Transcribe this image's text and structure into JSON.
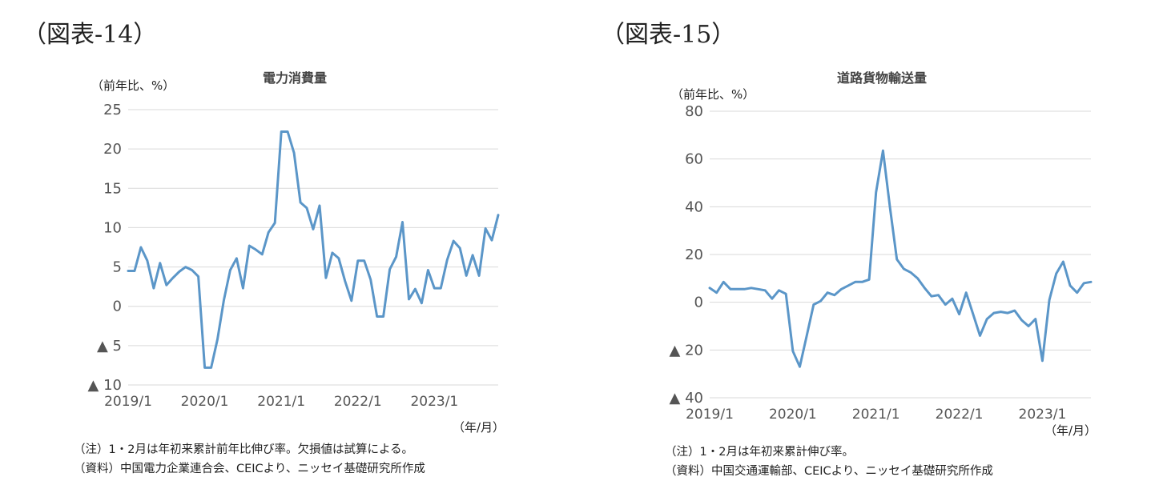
{
  "figures": [
    {
      "label": "（図表-14）",
      "title": "電力消費量",
      "y_unit": "（前年比、%）",
      "x_unit": "（年/月）",
      "notes": [
        "（注）1・2月は年初来累計前年比伸び率。欠損値は試算による。",
        "（資料）中国電力企業連合会、CEICより、ニッセイ基礎研究所作成"
      ]
    },
    {
      "label": "（図表-15）",
      "title": "道路貨物輸送量",
      "y_unit": "（前年比、%）",
      "x_unit": "（年/月）",
      "notes": [
        "（注）1・2月は年初来累計伸び率。",
        "（資料）中国交通運輸部、CEICより、ニッセイ基礎研究所作成"
      ]
    }
  ],
  "chart_data": [
    {
      "type": "line",
      "title": "電力消費量",
      "ylabel": "（前年比、%）",
      "xlabel": "（年/月）",
      "ylim": [
        -10,
        25
      ],
      "yticks": [
        25,
        20,
        15,
        10,
        5,
        0,
        -5,
        -10
      ],
      "ytick_labels": [
        "25",
        "20",
        "15",
        "10",
        "5",
        "0",
        "▲ 5",
        "▲ 10"
      ],
      "xtick_labels": [
        "2019/1",
        "2020/1",
        "2021/1",
        "2022/1",
        "2023/1"
      ],
      "grid": true,
      "line_color": "#5b96c8",
      "series": [
        {
          "start": "2019/1",
          "values": [
            4.5,
            4.5,
            7.5,
            5.8,
            2.3,
            5.5,
            2.7,
            3.6,
            4.4,
            5.0,
            4.6,
            3.8,
            -7.8,
            -7.8,
            -4.2,
            0.8,
            4.6,
            6.1,
            2.3,
            7.7,
            7.2,
            6.6,
            9.4,
            10.6,
            22.2,
            22.2,
            19.5,
            13.2,
            12.5,
            9.8,
            12.8,
            3.6,
            6.8,
            6.1,
            3.2,
            0.7,
            5.8,
            5.8,
            3.4,
            -1.3,
            -1.3,
            4.7,
            6.3,
            10.7,
            0.9,
            2.2,
            0.4,
            4.6,
            2.3,
            2.3,
            5.9,
            8.3,
            7.4,
            3.9,
            6.5,
            3.9,
            9.9,
            8.4,
            11.6
          ]
        }
      ]
    },
    {
      "type": "line",
      "title": "道路貨物輸送量",
      "ylabel": "（前年比、%）",
      "xlabel": "（年/月）",
      "ylim": [
        -40,
        80
      ],
      "yticks": [
        80,
        60,
        40,
        20,
        0,
        -20,
        -40
      ],
      "ytick_labels": [
        "80",
        "60",
        "40",
        "20",
        "0",
        "▲ 20",
        "▲ 40"
      ],
      "xtick_labels": [
        "2019/1",
        "2020/1",
        "2021/1",
        "2022/1",
        "2023/1"
      ],
      "grid": true,
      "line_color": "#5b96c8",
      "series": [
        {
          "start": "2019/1",
          "values": [
            6.0,
            4.0,
            8.5,
            5.5,
            5.5,
            5.5,
            6.0,
            5.5,
            5.0,
            1.5,
            5.0,
            3.5,
            -20.5,
            -27.0,
            -14.0,
            -1.0,
            0.5,
            4.0,
            3.0,
            5.5,
            7.0,
            8.5,
            8.5,
            9.5,
            46.0,
            63.5,
            40.0,
            18.0,
            14.0,
            12.5,
            10.0,
            6.0,
            2.5,
            3.0,
            -1.0,
            1.5,
            -5.0,
            4.0,
            -5.0,
            -14.0,
            -7.0,
            -4.5,
            -4.0,
            -4.5,
            -3.5,
            -7.5,
            -10.0,
            -7.0,
            -24.5,
            1.0,
            12.0,
            17.0,
            7.0,
            4.0,
            8.0,
            8.5
          ]
        }
      ]
    }
  ]
}
